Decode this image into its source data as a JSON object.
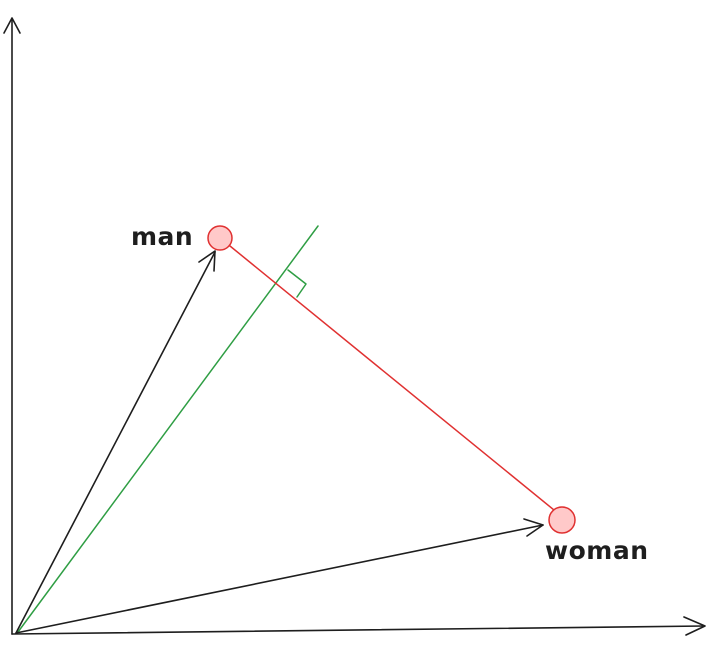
{
  "labels": {
    "man": "man",
    "woman": "woman"
  },
  "colors": {
    "ink": "#1e1e1e",
    "point_fill": "#ffc9c9",
    "point_stroke": "#e03131",
    "difference_line": "#e03131",
    "perpendicular_line": "#2f9e44"
  }
}
